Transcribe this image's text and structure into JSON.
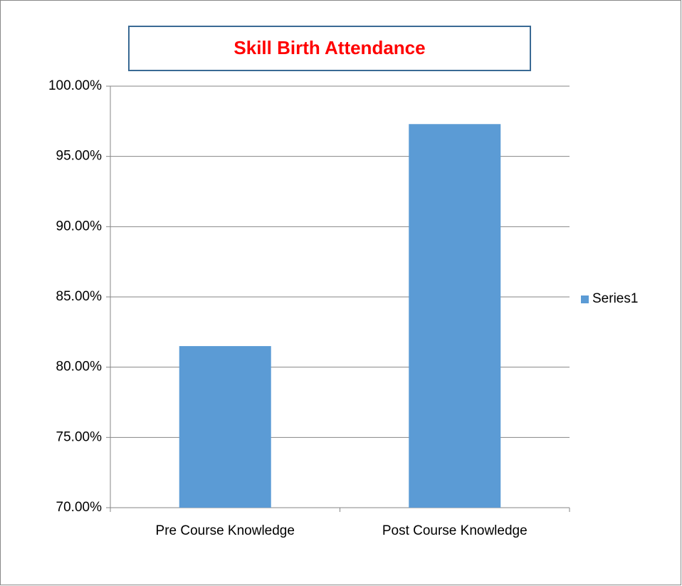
{
  "chart_data": {
    "type": "bar",
    "title": "Skill Birth Attendance",
    "categories": [
      "Pre Course Knowledge",
      "Post Course Knowledge"
    ],
    "series": [
      {
        "name": "Series1",
        "color": "#5b9bd5",
        "values": [
          81.5,
          97.3
        ]
      }
    ],
    "ylim": [
      70,
      100
    ],
    "yticks": [
      {
        "value": 70,
        "label": "70.00%"
      },
      {
        "value": 75,
        "label": "75.00%"
      },
      {
        "value": 80,
        "label": "80.00%"
      },
      {
        "value": 85,
        "label": "85.00%"
      },
      {
        "value": 90,
        "label": "90.00%"
      },
      {
        "value": 95,
        "label": "95.00%"
      },
      {
        "value": 100,
        "label": "100.00%"
      }
    ],
    "grid": true,
    "legend": "right"
  }
}
